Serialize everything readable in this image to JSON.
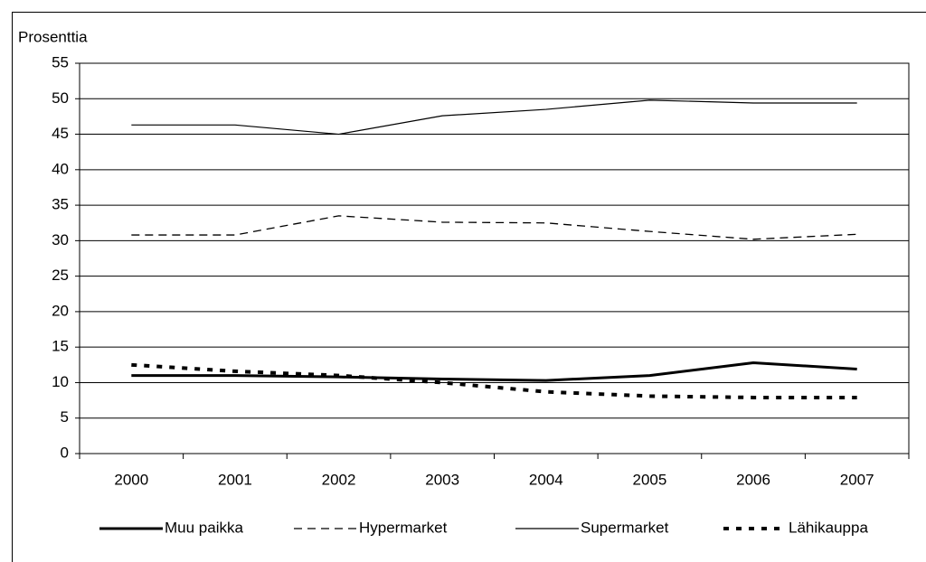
{
  "chart_data": {
    "type": "line",
    "y_axis_label": "Prosenttia",
    "categories": [
      "2000",
      "2001",
      "2002",
      "2003",
      "2004",
      "2005",
      "2006",
      "2007"
    ],
    "series": [
      {
        "name": "Muu paikka",
        "color": "#000000",
        "line_style": "thick",
        "values": [
          11.0,
          11.0,
          10.8,
          10.5,
          10.3,
          11.0,
          12.8,
          11.9
        ]
      },
      {
        "name": "Hypermarket",
        "color": "#000000",
        "line_style": "dashed",
        "values": [
          30.8,
          30.8,
          33.5,
          32.6,
          32.5,
          31.3,
          30.2,
          30.9
        ]
      },
      {
        "name": "Supermarket",
        "color": "#000000",
        "line_style": "thin",
        "values": [
          46.3,
          46.3,
          45.0,
          47.6,
          48.5,
          49.8,
          49.4,
          49.4
        ]
      },
      {
        "name": "Lähikauppa",
        "color": "#000000",
        "line_style": "dotted",
        "values": [
          12.5,
          11.6,
          11.0,
          10.0,
          8.7,
          8.1,
          7.9,
          7.9
        ]
      }
    ],
    "ylim": [
      0,
      55
    ],
    "yticks": [
      0,
      5,
      10,
      15,
      20,
      25,
      30,
      35,
      40,
      45,
      50,
      55
    ],
    "grid": true,
    "legend": "bottom"
  }
}
